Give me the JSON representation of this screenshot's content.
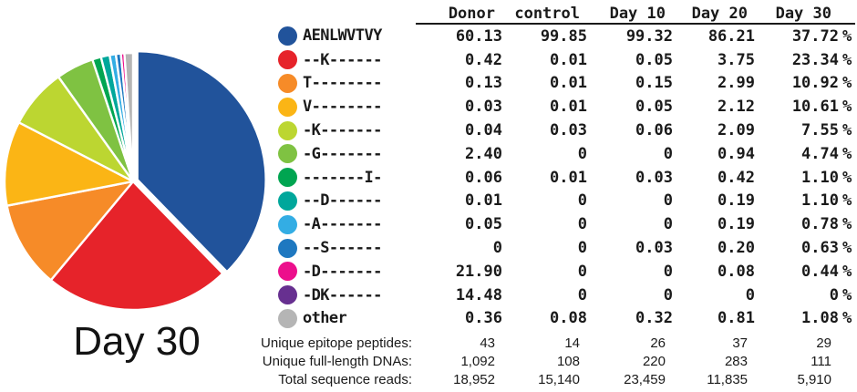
{
  "chart_data": {
    "type": "pie",
    "title": "Day 30",
    "labels": [
      "AENLWVTVY",
      "--K------",
      "T--------",
      "V--------",
      "-K-------",
      "-G-------",
      "-------I-",
      "--D------",
      "-A-------",
      "--S------",
      "-D-------",
      "-DK------",
      "other"
    ],
    "values": [
      37.72,
      23.34,
      10.92,
      10.61,
      7.55,
      4.74,
      1.1,
      1.1,
      0.78,
      0.63,
      0.44,
      0,
      1.08
    ],
    "colors": [
      "#21539B",
      "#E6232A",
      "#F68B28",
      "#FBB515",
      "#BCD631",
      "#7FC242",
      "#00A551",
      "#00A79B",
      "#33ADE4",
      "#1E78C0",
      "#EC0F8C",
      "#673090",
      "#B5B5B5"
    ],
    "start_angle": "top",
    "direction": "clockwise",
    "exploded_slice": "AENLWVTVY",
    "legend_position": "right-table",
    "unit": "%"
  },
  "table": {
    "columns": [
      "Donor",
      "control",
      "Day 10",
      "Day 20",
      "Day 30"
    ],
    "unit": "%",
    "rows": [
      {
        "seq": "AENLWVTVY",
        "color": "#21539B",
        "values": [
          "60.13",
          "99.85",
          "99.32",
          "86.21",
          "37.72"
        ]
      },
      {
        "seq": "--K------",
        "color": "#E6232A",
        "values": [
          "0.42",
          "0.01",
          "0.05",
          "3.75",
          "23.34"
        ]
      },
      {
        "seq": "T--------",
        "color": "#F68B28",
        "values": [
          "0.13",
          "0.01",
          "0.15",
          "2.99",
          "10.92"
        ]
      },
      {
        "seq": "V--------",
        "color": "#FBB515",
        "values": [
          "0.03",
          "0.01",
          "0.05",
          "2.12",
          "10.61"
        ]
      },
      {
        "seq": "-K-------",
        "color": "#BCD631",
        "values": [
          "0.04",
          "0.03",
          "0.06",
          "2.09",
          "7.55"
        ]
      },
      {
        "seq": "-G-------",
        "color": "#7FC242",
        "values": [
          "2.40",
          "0",
          "0",
          "0.94",
          "4.74"
        ]
      },
      {
        "seq": "-------I-",
        "color": "#00A551",
        "values": [
          "0.06",
          "0.01",
          "0.03",
          "0.42",
          "1.10"
        ]
      },
      {
        "seq": "--D------",
        "color": "#00A79B",
        "values": [
          "0.01",
          "0",
          "0",
          "0.19",
          "1.10"
        ]
      },
      {
        "seq": "-A-------",
        "color": "#33ADE4",
        "values": [
          "0.05",
          "0",
          "0",
          "0.19",
          "0.78"
        ]
      },
      {
        "seq": "--S------",
        "color": "#1E78C0",
        "values": [
          "0",
          "0",
          "0.03",
          "0.20",
          "0.63"
        ]
      },
      {
        "seq": "-D-------",
        "color": "#EC0F8C",
        "values": [
          "21.90",
          "0",
          "0",
          "0.08",
          "0.44"
        ]
      },
      {
        "seq": "-DK------",
        "color": "#673090",
        "values": [
          "14.48",
          "0",
          "0",
          "0",
          "0"
        ]
      },
      {
        "seq": "other",
        "color": "#B5B5B5",
        "values": [
          "0.36",
          "0.08",
          "0.32",
          "0.81",
          "1.08"
        ]
      }
    ]
  },
  "summary": {
    "rows": [
      {
        "label": "Unique epitope peptides:",
        "values": [
          "43",
          "14",
          "26",
          "37",
          "29"
        ]
      },
      {
        "label": "Unique full-length DNAs:",
        "values": [
          "1,092",
          "108",
          "220",
          "283",
          "111"
        ]
      },
      {
        "label": "Total sequence reads:",
        "values": [
          "18,952",
          "15,140",
          "23,459",
          "11,835",
          "5,910"
        ]
      }
    ]
  }
}
